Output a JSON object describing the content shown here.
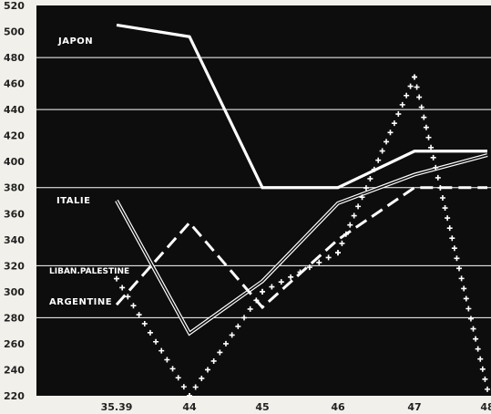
{
  "chart_data": {
    "type": "line",
    "title": "",
    "xlabel": "",
    "ylabel": "",
    "x": [
      "35.39",
      "44",
      "45",
      "46",
      "47",
      "48"
    ],
    "ylim": [
      220,
      520
    ],
    "yticks": [
      220,
      240,
      260,
      280,
      300,
      320,
      340,
      360,
      380,
      400,
      420,
      440,
      460,
      480,
      500,
      520
    ],
    "gridlines": [
      280,
      320,
      380,
      440,
      480
    ],
    "grid": true,
    "legend": "inline labels at left",
    "series": [
      {
        "name": "JAPON",
        "style": "solid-thick",
        "values": [
          505,
          496,
          380,
          380,
          408,
          408
        ]
      },
      {
        "name": "ITALIE",
        "style": "double",
        "values": [
          370,
          268,
          308,
          368,
          390,
          405
        ]
      },
      {
        "name": "LIBAN.PALESTINE",
        "style": "crosses",
        "values": [
          310,
          220,
          300,
          330,
          465,
          225
        ]
      },
      {
        "name": "ARGENTINE",
        "style": "dashed",
        "values": [
          290,
          353,
          288,
          340,
          380,
          380
        ]
      }
    ],
    "colors": {
      "background": "#0d0d0d",
      "line": "#ffffff",
      "grid": "#ffffff",
      "frame": "#f2f0ea",
      "text": "#222222"
    }
  }
}
